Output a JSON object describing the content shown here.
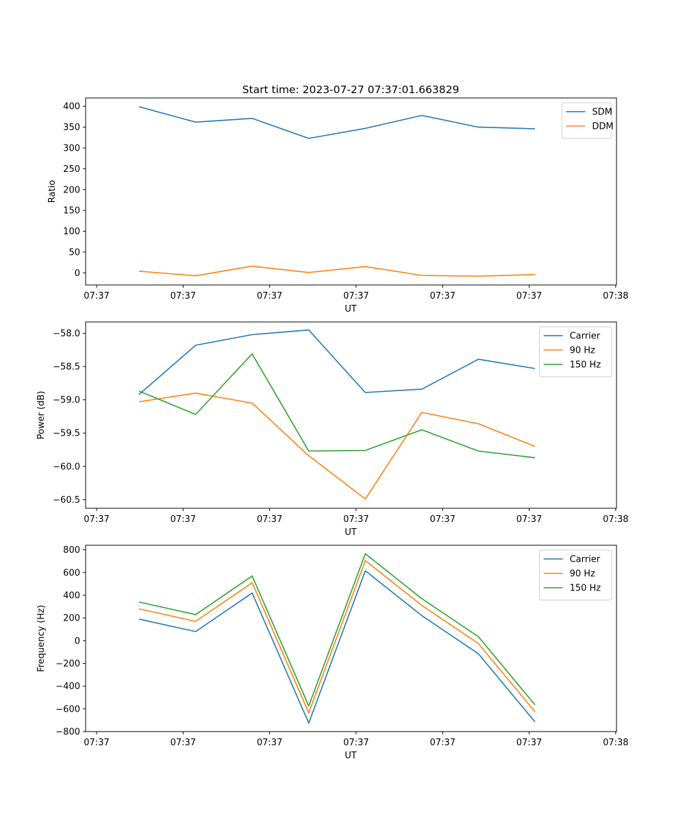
{
  "figure": {
    "title": "Start time: 2023-07-27 07:37:01.663829"
  },
  "chart_data": [
    {
      "type": "line",
      "title": "Start time: 2023-07-27 07:37:01.663829",
      "xlabel": "UT",
      "ylabel": "Ratio",
      "x_tick_labels": [
        "07:37",
        "07:37",
        "07:37",
        "07:37",
        "07:37",
        "07:37",
        "07:38"
      ],
      "x_point_index": [
        1,
        2,
        3,
        4,
        5,
        6,
        7,
        8
      ],
      "xlim": [
        0.25,
        9.4
      ],
      "ylim": [
        -29,
        420
      ],
      "y_ticks": [
        0,
        50,
        100,
        150,
        200,
        250,
        300,
        350,
        400
      ],
      "legend_loc": "upper right",
      "series": [
        {
          "name": "SDM",
          "color": "#1f77b4",
          "values": [
            399,
            362,
            371,
            323,
            347,
            378,
            350,
            346
          ]
        },
        {
          "name": "DDM",
          "color": "#ff7f0e",
          "values": [
            4,
            -7,
            16,
            1,
            15,
            -6,
            -8,
            -4
          ]
        }
      ]
    },
    {
      "type": "line",
      "title": "",
      "xlabel": "UT",
      "ylabel": "Power (dB)",
      "x_tick_labels": [
        "07:37",
        "07:37",
        "07:37",
        "07:37",
        "07:37",
        "07:37",
        "07:38"
      ],
      "x_point_index": [
        1,
        2,
        3,
        4,
        5,
        6,
        7,
        8
      ],
      "xlim": [
        0.25,
        9.4
      ],
      "ylim": [
        -60.63,
        -57.83
      ],
      "y_ticks": [
        -58.0,
        -58.5,
        -59.0,
        -59.5,
        -60.0,
        -60.5
      ],
      "y_tick_labels": [
        "−58.0",
        "−58.5",
        "−59.0",
        "−59.5",
        "−60.0",
        "−60.5"
      ],
      "legend_loc": "upper right",
      "series": [
        {
          "name": "Carrier",
          "color": "#1f77b4",
          "values": [
            -58.92,
            -58.18,
            -58.02,
            -57.95,
            -58.89,
            -58.84,
            -58.39,
            -58.53
          ]
        },
        {
          "name": "90 Hz",
          "color": "#ff7f0e",
          "values": [
            -59.03,
            -58.9,
            -59.05,
            -59.84,
            -60.49,
            -59.19,
            -59.36,
            -59.7
          ]
        },
        {
          "name": "150 Hz",
          "color": "#2ca02c",
          "values": [
            -58.87,
            -59.22,
            -58.31,
            -59.77,
            -59.76,
            -59.45,
            -59.77,
            -59.87
          ]
        }
      ]
    },
    {
      "type": "line",
      "title": "",
      "xlabel": "UT",
      "ylabel": "Frequency (Hz)",
      "x_tick_labels": [
        "07:37",
        "07:37",
        "07:37",
        "07:37",
        "07:37",
        "07:37",
        "07:38"
      ],
      "x_point_index": [
        1,
        2,
        3,
        4,
        5,
        6,
        7,
        8
      ],
      "xlim": [
        0.25,
        9.4
      ],
      "ylim": [
        -800,
        840
      ],
      "y_ticks": [
        800,
        600,
        400,
        200,
        0,
        -200,
        -400,
        -600,
        -800
      ],
      "y_tick_labels": [
        "800",
        "600",
        "400",
        "200",
        "0",
        "−200",
        "−400",
        "−600",
        "−800"
      ],
      "legend_loc": "upper right",
      "series": [
        {
          "name": "Carrier",
          "color": "#1f77b4",
          "values": [
            190,
            80,
            420,
            -725,
            615,
            220,
            -115,
            -715
          ]
        },
        {
          "name": "90 Hz",
          "color": "#ff7f0e",
          "values": [
            280,
            170,
            510,
            -635,
            705,
            310,
            -25,
            -625
          ]
        },
        {
          "name": "150 Hz",
          "color": "#2ca02c",
          "values": [
            340,
            230,
            570,
            -575,
            765,
            370,
            35,
            -565
          ]
        }
      ]
    }
  ]
}
